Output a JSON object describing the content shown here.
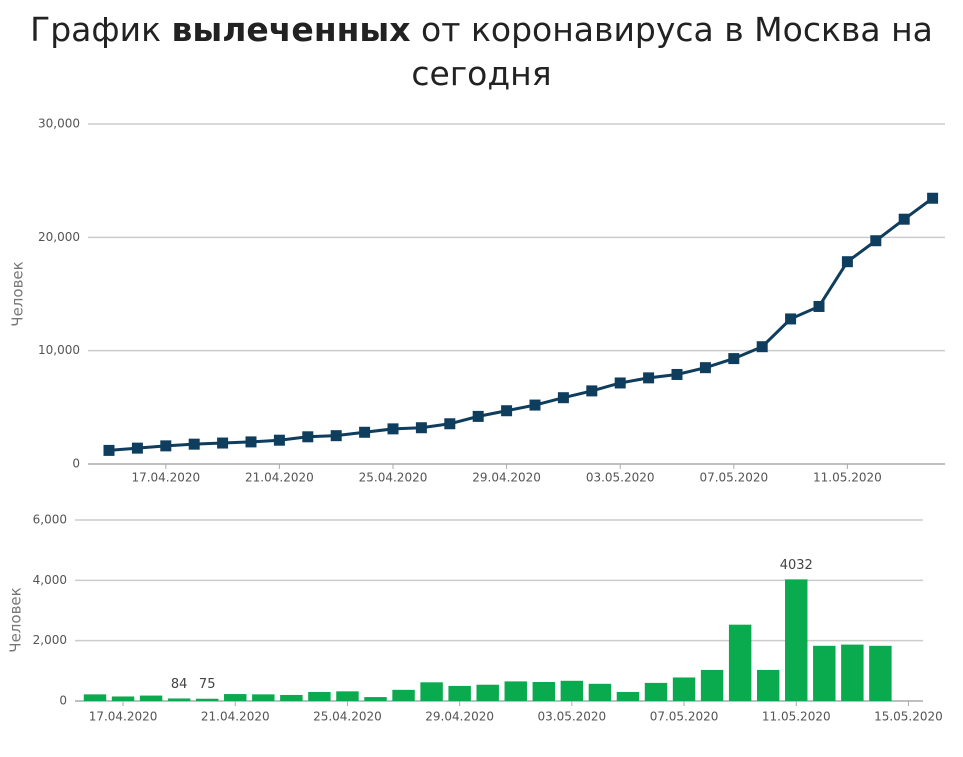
{
  "chart_data": [
    {
      "type": "line",
      "title": [
        "График",
        "вылеченных",
        "от коронавируса в Москва на сегодня"
      ],
      "y_label": "Человек",
      "color": "#0e3d5e",
      "x": [
        "15.04.2020",
        "16.04.2020",
        "17.04.2020",
        "18.04.2020",
        "19.04.2020",
        "20.04.2020",
        "21.04.2020",
        "22.04.2020",
        "23.04.2020",
        "24.04.2020",
        "25.04.2020",
        "26.04.2020",
        "27.04.2020",
        "28.04.2020",
        "29.04.2020",
        "30.04.2020",
        "01.05.2020",
        "02.05.2020",
        "03.05.2020",
        "04.05.2020",
        "05.05.2020",
        "06.05.2020",
        "07.05.2020",
        "08.05.2020",
        "09.05.2020",
        "10.05.2020",
        "11.05.2020",
        "12.05.2020",
        "13.05.2020",
        "14.05.2020"
      ],
      "values": [
        1200,
        1400,
        1600,
        1750,
        1850,
        1950,
        2100,
        2400,
        2500,
        2800,
        3100,
        3200,
        3550,
        4200,
        4700,
        5200,
        5850,
        6450,
        7150,
        7600,
        7900,
        8500,
        9300,
        10350,
        12800,
        13900,
        17850,
        19700,
        21600,
        23450
      ],
      "xticks": [
        "17.04.2020",
        "21.04.2020",
        "25.04.2020",
        "29.04.2020",
        "03.05.2020",
        "07.05.2020",
        "11.05.2020"
      ],
      "ylim": [
        0,
        30000
      ],
      "yticks": [
        0,
        {
          "value": 10000,
          "label": "10,000"
        },
        {
          "value": 20000,
          "label": "20,000"
        },
        {
          "value": 30000,
          "label": "30,000"
        }
      ],
      "grid": true
    },
    {
      "type": "bar",
      "y_label": "Человек",
      "color": "#0aaa4e",
      "x": [
        "16.04.2020",
        "17.04.2020",
        "18.04.2020",
        "19.04.2020",
        "20.04.2020",
        "21.04.2020",
        "22.04.2020",
        "23.04.2020",
        "24.04.2020",
        "25.04.2020",
        "26.04.2020",
        "27.04.2020",
        "28.04.2020",
        "29.04.2020",
        "30.04.2020",
        "01.05.2020",
        "02.05.2020",
        "03.05.2020",
        "04.05.2020",
        "05.05.2020",
        "06.05.2020",
        "07.05.2020",
        "08.05.2020",
        "09.05.2020",
        "10.05.2020",
        "11.05.2020",
        "12.05.2020",
        "13.05.2020",
        "14.05.2020"
      ],
      "values": [
        220,
        150,
        180,
        84,
        75,
        230,
        220,
        200,
        300,
        320,
        130,
        370,
        620,
        500,
        540,
        650,
        630,
        670,
        570,
        300,
        600,
        780,
        1030,
        2530,
        1030,
        4032,
        1830,
        1870,
        1830
      ],
      "value_labels": [
        null,
        null,
        null,
        "84",
        "75",
        null,
        null,
        null,
        null,
        null,
        null,
        null,
        null,
        null,
        null,
        null,
        null,
        null,
        null,
        null,
        null,
        null,
        null,
        null,
        null,
        "4032",
        null,
        null,
        null
      ],
      "xticks": [
        "17.04.2020",
        "21.04.2020",
        "25.04.2020",
        "29.04.2020",
        "03.05.2020",
        "07.05.2020",
        "11.05.2020",
        "15.05.2020"
      ],
      "ylim": [
        0,
        6000
      ],
      "yticks": [
        0,
        {
          "value": 2000,
          "label": "2,000"
        },
        {
          "value": 4000,
          "label": "4,000"
        },
        {
          "value": 6000,
          "label": "6,000"
        }
      ],
      "grid": true
    }
  ]
}
